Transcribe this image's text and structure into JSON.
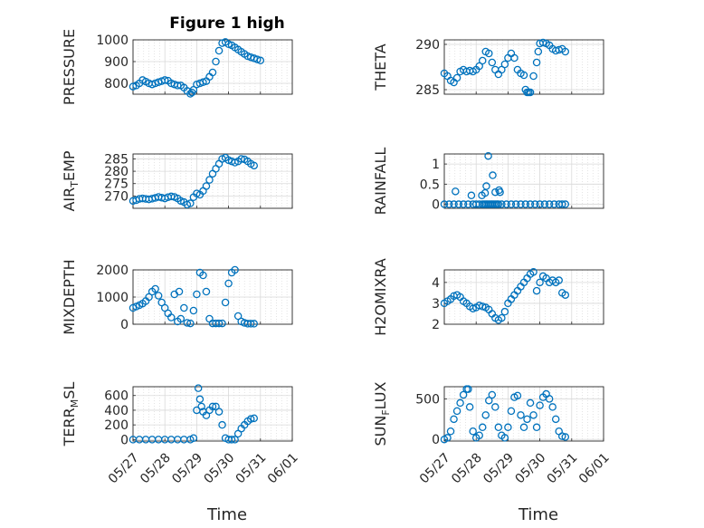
{
  "figure": {
    "title": "Figure 1 high",
    "x_axis_label": "Time",
    "marker_color": "#0072BD",
    "grid_color": "#d9d9d9"
  },
  "chart_data": [
    {
      "type": "scatter",
      "ylabel": "PRESSURE",
      "ylim": [
        750,
        1000
      ],
      "yticks": [
        800,
        900,
        1000
      ],
      "xlim": [
        0,
        5
      ],
      "xticks": [
        "05/27",
        "05/28",
        "05/29",
        "05/30",
        "05/31",
        "06/01"
      ],
      "grid": "on",
      "marker": "open-circle",
      "x": [
        0.0,
        0.1,
        0.2,
        0.3,
        0.4,
        0.5,
        0.6,
        0.7,
        0.8,
        0.9,
        1.0,
        1.1,
        1.2,
        1.3,
        1.4,
        1.5,
        1.6,
        1.7,
        1.8,
        1.85,
        1.9,
        2.0,
        2.1,
        2.2,
        2.3,
        2.4,
        2.5,
        2.6,
        2.7,
        2.8,
        2.9,
        3.0,
        3.1,
        3.2,
        3.3,
        3.4,
        3.5,
        3.6,
        3.7,
        3.8,
        3.9,
        4.0
      ],
      "y": [
        785,
        790,
        800,
        815,
        808,
        800,
        795,
        800,
        805,
        810,
        815,
        812,
        800,
        795,
        790,
        790,
        780,
        765,
        752,
        758,
        770,
        795,
        800,
        805,
        810,
        830,
        850,
        900,
        950,
        985,
        990,
        980,
        975,
        965,
        955,
        945,
        935,
        925,
        920,
        915,
        910,
        905
      ]
    },
    {
      "type": "scatter",
      "ylabel": "THETA",
      "ylim": [
        284.5,
        290.5
      ],
      "yticks": [
        285,
        290
      ],
      "xlim": [
        0,
        5
      ],
      "xticks": [
        "05/27",
        "05/28",
        "05/29",
        "05/30",
        "05/31",
        "06/01"
      ],
      "grid": "on",
      "marker": "open-circle",
      "x": [
        0.0,
        0.1,
        0.2,
        0.3,
        0.4,
        0.5,
        0.6,
        0.7,
        0.8,
        0.9,
        1.0,
        1.1,
        1.2,
        1.3,
        1.4,
        1.5,
        1.6,
        1.7,
        1.8,
        1.9,
        2.0,
        2.1,
        2.2,
        2.3,
        2.4,
        2.5,
        2.55,
        2.6,
        2.65,
        2.7,
        2.8,
        2.9,
        2.95,
        3.0,
        3.1,
        3.2,
        3.3,
        3.4,
        3.5,
        3.6,
        3.7,
        3.8
      ],
      "y": [
        286.8,
        286.5,
        286.0,
        285.8,
        286.3,
        287.0,
        287.2,
        287.0,
        287.1,
        287.0,
        287.2,
        287.6,
        288.2,
        289.2,
        289.0,
        288.0,
        287.2,
        286.7,
        287.2,
        287.8,
        288.5,
        289.0,
        288.5,
        287.2,
        286.8,
        286.6,
        285.0,
        284.7,
        284.7,
        284.7,
        286.5,
        288.0,
        289.2,
        290.1,
        290.2,
        290.1,
        289.9,
        289.5,
        289.3,
        289.4,
        289.5,
        289.2
      ]
    },
    {
      "type": "scatter",
      "ylabel": "AIR_TEMP",
      "ylim": [
        265,
        287
      ],
      "yticks": [
        270,
        275,
        280,
        285
      ],
      "xlim": [
        0,
        5
      ],
      "xticks": [
        "05/27",
        "05/28",
        "05/29",
        "05/30",
        "05/31",
        "06/01"
      ],
      "grid": "on",
      "marker": "open-circle",
      "x": [
        0.0,
        0.1,
        0.2,
        0.3,
        0.4,
        0.5,
        0.6,
        0.7,
        0.8,
        0.9,
        1.0,
        1.1,
        1.2,
        1.3,
        1.4,
        1.5,
        1.6,
        1.7,
        1.8,
        1.9,
        2.0,
        2.1,
        2.2,
        2.3,
        2.4,
        2.5,
        2.6,
        2.7,
        2.8,
        2.9,
        3.0,
        3.1,
        3.2,
        3.3,
        3.4,
        3.5,
        3.6,
        3.7,
        3.8
      ],
      "y": [
        268.0,
        268.3,
        268.8,
        269.0,
        268.8,
        268.6,
        268.9,
        269.2,
        269.6,
        269.3,
        269.0,
        269.5,
        269.8,
        269.6,
        269.0,
        268.0,
        267.5,
        266.5,
        267.0,
        269.5,
        271.0,
        270.5,
        272.0,
        274.0,
        276.5,
        279.0,
        281.0,
        283.0,
        285.0,
        285.5,
        284.5,
        284.0,
        283.5,
        284.0,
        285.0,
        284.8,
        284.0,
        283.0,
        282.3
      ]
    },
    {
      "type": "scatter",
      "ylabel": "RAINFALL",
      "ylim": [
        -0.1,
        1.25
      ],
      "yticks": [
        0,
        0.5,
        1
      ],
      "xlim": [
        0,
        5
      ],
      "xticks": [
        "05/27",
        "05/28",
        "05/29",
        "05/30",
        "05/31",
        "06/01"
      ],
      "grid": "on",
      "marker": "open-circle",
      "x": [
        0.0,
        0.15,
        0.3,
        0.45,
        0.6,
        0.75,
        0.9,
        1.0,
        1.1,
        1.2,
        1.25,
        1.3,
        1.35,
        1.4,
        1.45,
        1.5,
        1.55,
        1.6,
        1.65,
        1.7,
        1.8,
        1.95,
        2.1,
        2.25,
        2.4,
        2.55,
        2.7,
        2.85,
        3.0,
        3.15,
        3.3,
        3.45,
        3.6,
        3.7,
        3.8,
        0.35,
        0.85,
        1.18,
        1.28,
        1.32,
        1.38,
        1.52,
        1.6,
        1.72,
        1.75
      ],
      "y": [
        0,
        0,
        0,
        0,
        0,
        0,
        0,
        0,
        0,
        0,
        0,
        0,
        0,
        0,
        0,
        0,
        0,
        0,
        0,
        0,
        0,
        0,
        0,
        0,
        0,
        0,
        0,
        0,
        0,
        0,
        0,
        0,
        0,
        0,
        0,
        0.32,
        0.22,
        0.22,
        0.28,
        0.45,
        1.2,
        0.72,
        0.3,
        0.35,
        0.3
      ]
    },
    {
      "type": "scatter",
      "ylabel": "MIXDEPTH",
      "ylim": [
        0,
        2000
      ],
      "yticks": [
        0,
        1000,
        2000
      ],
      "xlim": [
        0,
        5
      ],
      "xticks": [
        "05/27",
        "05/28",
        "05/29",
        "05/30",
        "05/31",
        "06/01"
      ],
      "grid": "on",
      "marker": "open-circle",
      "x": [
        0.0,
        0.1,
        0.2,
        0.3,
        0.4,
        0.5,
        0.6,
        0.7,
        0.8,
        0.9,
        1.0,
        1.1,
        1.2,
        1.3,
        1.4,
        1.45,
        1.5,
        1.6,
        1.7,
        1.8,
        1.9,
        2.0,
        2.1,
        2.2,
        2.3,
        2.4,
        2.5,
        2.6,
        2.7,
        2.8,
        2.9,
        3.0,
        3.1,
        3.2,
        3.3,
        3.4,
        3.5,
        3.6,
        3.7,
        3.8
      ],
      "y": [
        600,
        650,
        700,
        760,
        850,
        1000,
        1200,
        1300,
        1050,
        800,
        600,
        400,
        250,
        1100,
        100,
        1200,
        200,
        600,
        50,
        30,
        500,
        1100,
        1900,
        1800,
        1200,
        200,
        30,
        30,
        30,
        30,
        800,
        1500,
        1900,
        2000,
        300,
        100,
        50,
        20,
        20,
        20
      ]
    },
    {
      "type": "scatter",
      "ylabel": "H2OMIXRA",
      "ylim": [
        2,
        4.6
      ],
      "yticks": [
        2,
        3,
        4
      ],
      "xlim": [
        0,
        5
      ],
      "xticks": [
        "05/27",
        "05/28",
        "05/29",
        "05/30",
        "05/31",
        "06/01"
      ],
      "grid": "on",
      "marker": "open-circle",
      "x": [
        0.0,
        0.1,
        0.2,
        0.3,
        0.4,
        0.5,
        0.6,
        0.7,
        0.8,
        0.9,
        1.0,
        1.1,
        1.2,
        1.3,
        1.4,
        1.5,
        1.6,
        1.7,
        1.8,
        1.9,
        2.0,
        2.1,
        2.2,
        2.3,
        2.4,
        2.5,
        2.6,
        2.7,
        2.8,
        2.9,
        3.0,
        3.1,
        3.2,
        3.3,
        3.4,
        3.5,
        3.6,
        3.7,
        3.8
      ],
      "y": [
        3.0,
        3.1,
        3.2,
        3.35,
        3.4,
        3.3,
        3.1,
        3.0,
        2.85,
        2.75,
        2.8,
        2.9,
        2.85,
        2.8,
        2.7,
        2.5,
        2.3,
        2.2,
        2.3,
        2.6,
        3.0,
        3.2,
        3.4,
        3.6,
        3.8,
        4.0,
        4.2,
        4.4,
        4.5,
        3.6,
        4.0,
        4.3,
        4.2,
        4.0,
        4.1,
        4.0,
        4.1,
        3.5,
        3.4
      ]
    },
    {
      "type": "scatter",
      "ylabel": "TERR_MSL",
      "ylim": [
        -20,
        720
      ],
      "yticks": [
        0,
        200,
        400,
        600
      ],
      "xlim": [
        0,
        5
      ],
      "xticks": [
        "05/27",
        "05/28",
        "05/29",
        "05/30",
        "05/31",
        "06/01"
      ],
      "grid": "on",
      "marker": "open-circle",
      "x": [
        0.0,
        0.2,
        0.4,
        0.6,
        0.8,
        1.0,
        1.2,
        1.4,
        1.6,
        1.8,
        1.9,
        2.0,
        2.05,
        2.1,
        2.15,
        2.2,
        2.3,
        2.4,
        2.5,
        2.6,
        2.7,
        2.8,
        2.9,
        3.0,
        3.1,
        3.2,
        3.3,
        3.4,
        3.5,
        3.6,
        3.7,
        3.8
      ],
      "y": [
        0,
        0,
        0,
        0,
        0,
        0,
        0,
        0,
        0,
        0,
        20,
        400,
        700,
        550,
        450,
        380,
        330,
        400,
        450,
        450,
        380,
        200,
        20,
        0,
        0,
        0,
        80,
        150,
        200,
        250,
        280,
        290
      ]
    },
    {
      "type": "scatter",
      "ylabel": "SUN_FLUX",
      "ylim": [
        -20,
        650
      ],
      "yticks": [
        0,
        500
      ],
      "xlim": [
        0,
        5
      ],
      "xticks": [
        "05/27",
        "05/28",
        "05/29",
        "05/30",
        "05/31",
        "06/01"
      ],
      "grid": "on",
      "marker": "open-circle",
      "x": [
        0.0,
        0.1,
        0.2,
        0.3,
        0.4,
        0.5,
        0.6,
        0.7,
        0.75,
        0.8,
        0.9,
        1.0,
        1.1,
        1.2,
        1.3,
        1.4,
        1.5,
        1.6,
        1.7,
        1.8,
        1.9,
        2.0,
        2.1,
        2.2,
        2.3,
        2.4,
        2.5,
        2.6,
        2.7,
        2.8,
        2.9,
        3.0,
        3.1,
        3.2,
        3.3,
        3.4,
        3.5,
        3.6,
        3.7,
        3.8
      ],
      "y": [
        0,
        20,
        100,
        250,
        350,
        450,
        550,
        620,
        620,
        400,
        100,
        20,
        50,
        150,
        300,
        480,
        550,
        400,
        150,
        50,
        20,
        150,
        350,
        520,
        540,
        300,
        150,
        250,
        450,
        300,
        150,
        420,
        520,
        560,
        500,
        400,
        250,
        100,
        40,
        30
      ]
    }
  ]
}
